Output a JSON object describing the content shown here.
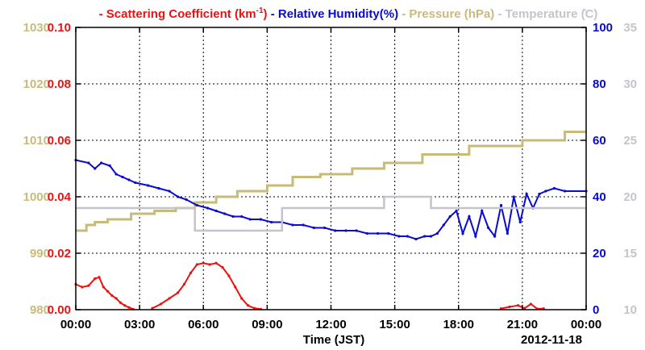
{
  "chart_data": {
    "type": "line",
    "date": "2012-11-18",
    "xlabel": "Time (JST)",
    "x_ticks": [
      "00:00",
      "03:00",
      "06:00",
      "09:00",
      "12:00",
      "15:00",
      "18:00",
      "21:00",
      "00:00"
    ],
    "xlim_hours": [
      0,
      24
    ],
    "grid": true,
    "legend_position": "top",
    "axes": {
      "pressure": {
        "side": "left-outer",
        "ylim": [
          980,
          1030
        ],
        "ticks": [
          "980",
          "990",
          "1000",
          "1010",
          "1020",
          "1030"
        ],
        "color": "#c8bb7a"
      },
      "scattering": {
        "side": "left-inner",
        "ylim": [
          0,
          0.1
        ],
        "ticks": [
          "0.00",
          "0.02",
          "0.04",
          "0.06",
          "0.08",
          "0.10"
        ],
        "color": "#ee1111"
      },
      "humidity": {
        "side": "right-inner",
        "ylim": [
          0,
          100
        ],
        "ticks": [
          "0",
          "20",
          "40",
          "60",
          "80",
          "100"
        ],
        "color": "#0a0ad0"
      },
      "temperature": {
        "side": "right-outer",
        "ylim": [
          10,
          35
        ],
        "ticks": [
          "10",
          "15",
          "20",
          "25",
          "30",
          "35"
        ],
        "color": "#c4c4cc"
      }
    },
    "legend": [
      {
        "key": "scattering",
        "text": "Scattering Coefficient (km",
        "sup": "-1",
        "tail": ")"
      },
      {
        "key": "humidity",
        "text": "Relative Humidity(%)"
      },
      {
        "key": "pressure",
        "text": "Pressure (hPa)"
      },
      {
        "key": "temperature",
        "text": "Temperature (̊C)"
      }
    ],
    "series": [
      {
        "key": "pressure",
        "axis": "pressure",
        "step": true,
        "x": [
          0,
          0.5,
          0.9,
          1.5,
          2.6,
          3.7,
          4.7,
          5.6,
          6.6,
          7.6,
          9.0,
          10.2,
          11.5,
          13.0,
          14.5,
          16.3,
          18.5,
          21.0,
          23.0,
          24
        ],
        "values": [
          994,
          995,
          995.5,
          996,
          997,
          997.5,
          998,
          999,
          1000,
          1001,
          1002,
          1003.5,
          1004,
          1005,
          1006,
          1007.5,
          1009,
          1010,
          1011.5,
          1011.5
        ]
      },
      {
        "key": "humidity",
        "axis": "humidity",
        "x": [
          0,
          0.6,
          0.9,
          1.2,
          1.6,
          1.9,
          2.2,
          2.5,
          2.8,
          3.4,
          3.9,
          4.4,
          4.8,
          5.2,
          5.7,
          6.2,
          6.6,
          7.0,
          7.4,
          7.8,
          8.2,
          8.7,
          9.2,
          9.7,
          10.2,
          10.7,
          11.2,
          11.7,
          12.2,
          12.7,
          13.2,
          13.7,
          14.2,
          14.7,
          15.2,
          15.6,
          16.0,
          16.4,
          16.7,
          17.0,
          17.3,
          17.6,
          17.9,
          18.2,
          18.5,
          18.8,
          19.1,
          19.4,
          19.7,
          20.0,
          20.3,
          20.6,
          20.9,
          21.2,
          21.5,
          21.8,
          22.1,
          22.5,
          23.0,
          24.0
        ],
        "values": [
          53,
          52,
          50,
          52,
          51,
          48,
          47,
          46,
          45,
          44,
          43,
          42,
          40,
          39,
          37,
          36,
          35,
          34,
          33,
          33,
          32,
          32,
          31,
          31,
          30,
          30,
          29,
          29,
          28,
          28,
          28,
          27,
          27,
          27,
          26,
          26,
          25,
          26,
          26,
          27,
          30,
          33,
          35,
          27,
          33,
          26,
          35,
          29,
          26,
          37,
          27,
          40,
          31,
          41,
          36,
          41,
          42,
          43,
          42,
          42
        ]
      },
      {
        "key": "scattering",
        "axis": "scattering",
        "segments": [
          {
            "x": [
              0,
              0.3,
              0.6,
              0.9,
              1.1,
              1.3,
              1.5,
              1.7,
              1.9,
              2.1,
              2.3,
              2.5,
              2.7
            ],
            "values": [
              0.009,
              0.008,
              0.0085,
              0.011,
              0.0115,
              0.008,
              0.0065,
              0.005,
              0.004,
              0.0025,
              0.0015,
              0.0008,
              0.0002
            ]
          },
          {
            "x": [
              3.6,
              4.0,
              4.4,
              4.8,
              5.1,
              5.4,
              5.7,
              6.0,
              6.3,
              6.6,
              6.9,
              7.2,
              7.5,
              7.8,
              8.1,
              8.4,
              8.7
            ],
            "values": [
              0.0005,
              0.002,
              0.004,
              0.006,
              0.009,
              0.013,
              0.016,
              0.0165,
              0.016,
              0.0165,
              0.015,
              0.012,
              0.008,
              0.004,
              0.0015,
              0.0005,
              0.0002
            ]
          },
          {
            "x": [
              20.0,
              20.4,
              20.8,
              21.1,
              21.4,
              21.7,
              22.0
            ],
            "values": [
              0.0004,
              0.001,
              0.0015,
              0.0005,
              0.002,
              0.0003,
              0.0004
            ]
          }
        ]
      },
      {
        "key": "temperature",
        "axis": "temperature",
        "step": true,
        "x": [
          0,
          5.6,
          9.7,
          14.5,
          16.7,
          20.3,
          24
        ],
        "values": [
          19,
          17,
          19,
          20,
          19,
          19,
          19
        ]
      }
    ]
  }
}
